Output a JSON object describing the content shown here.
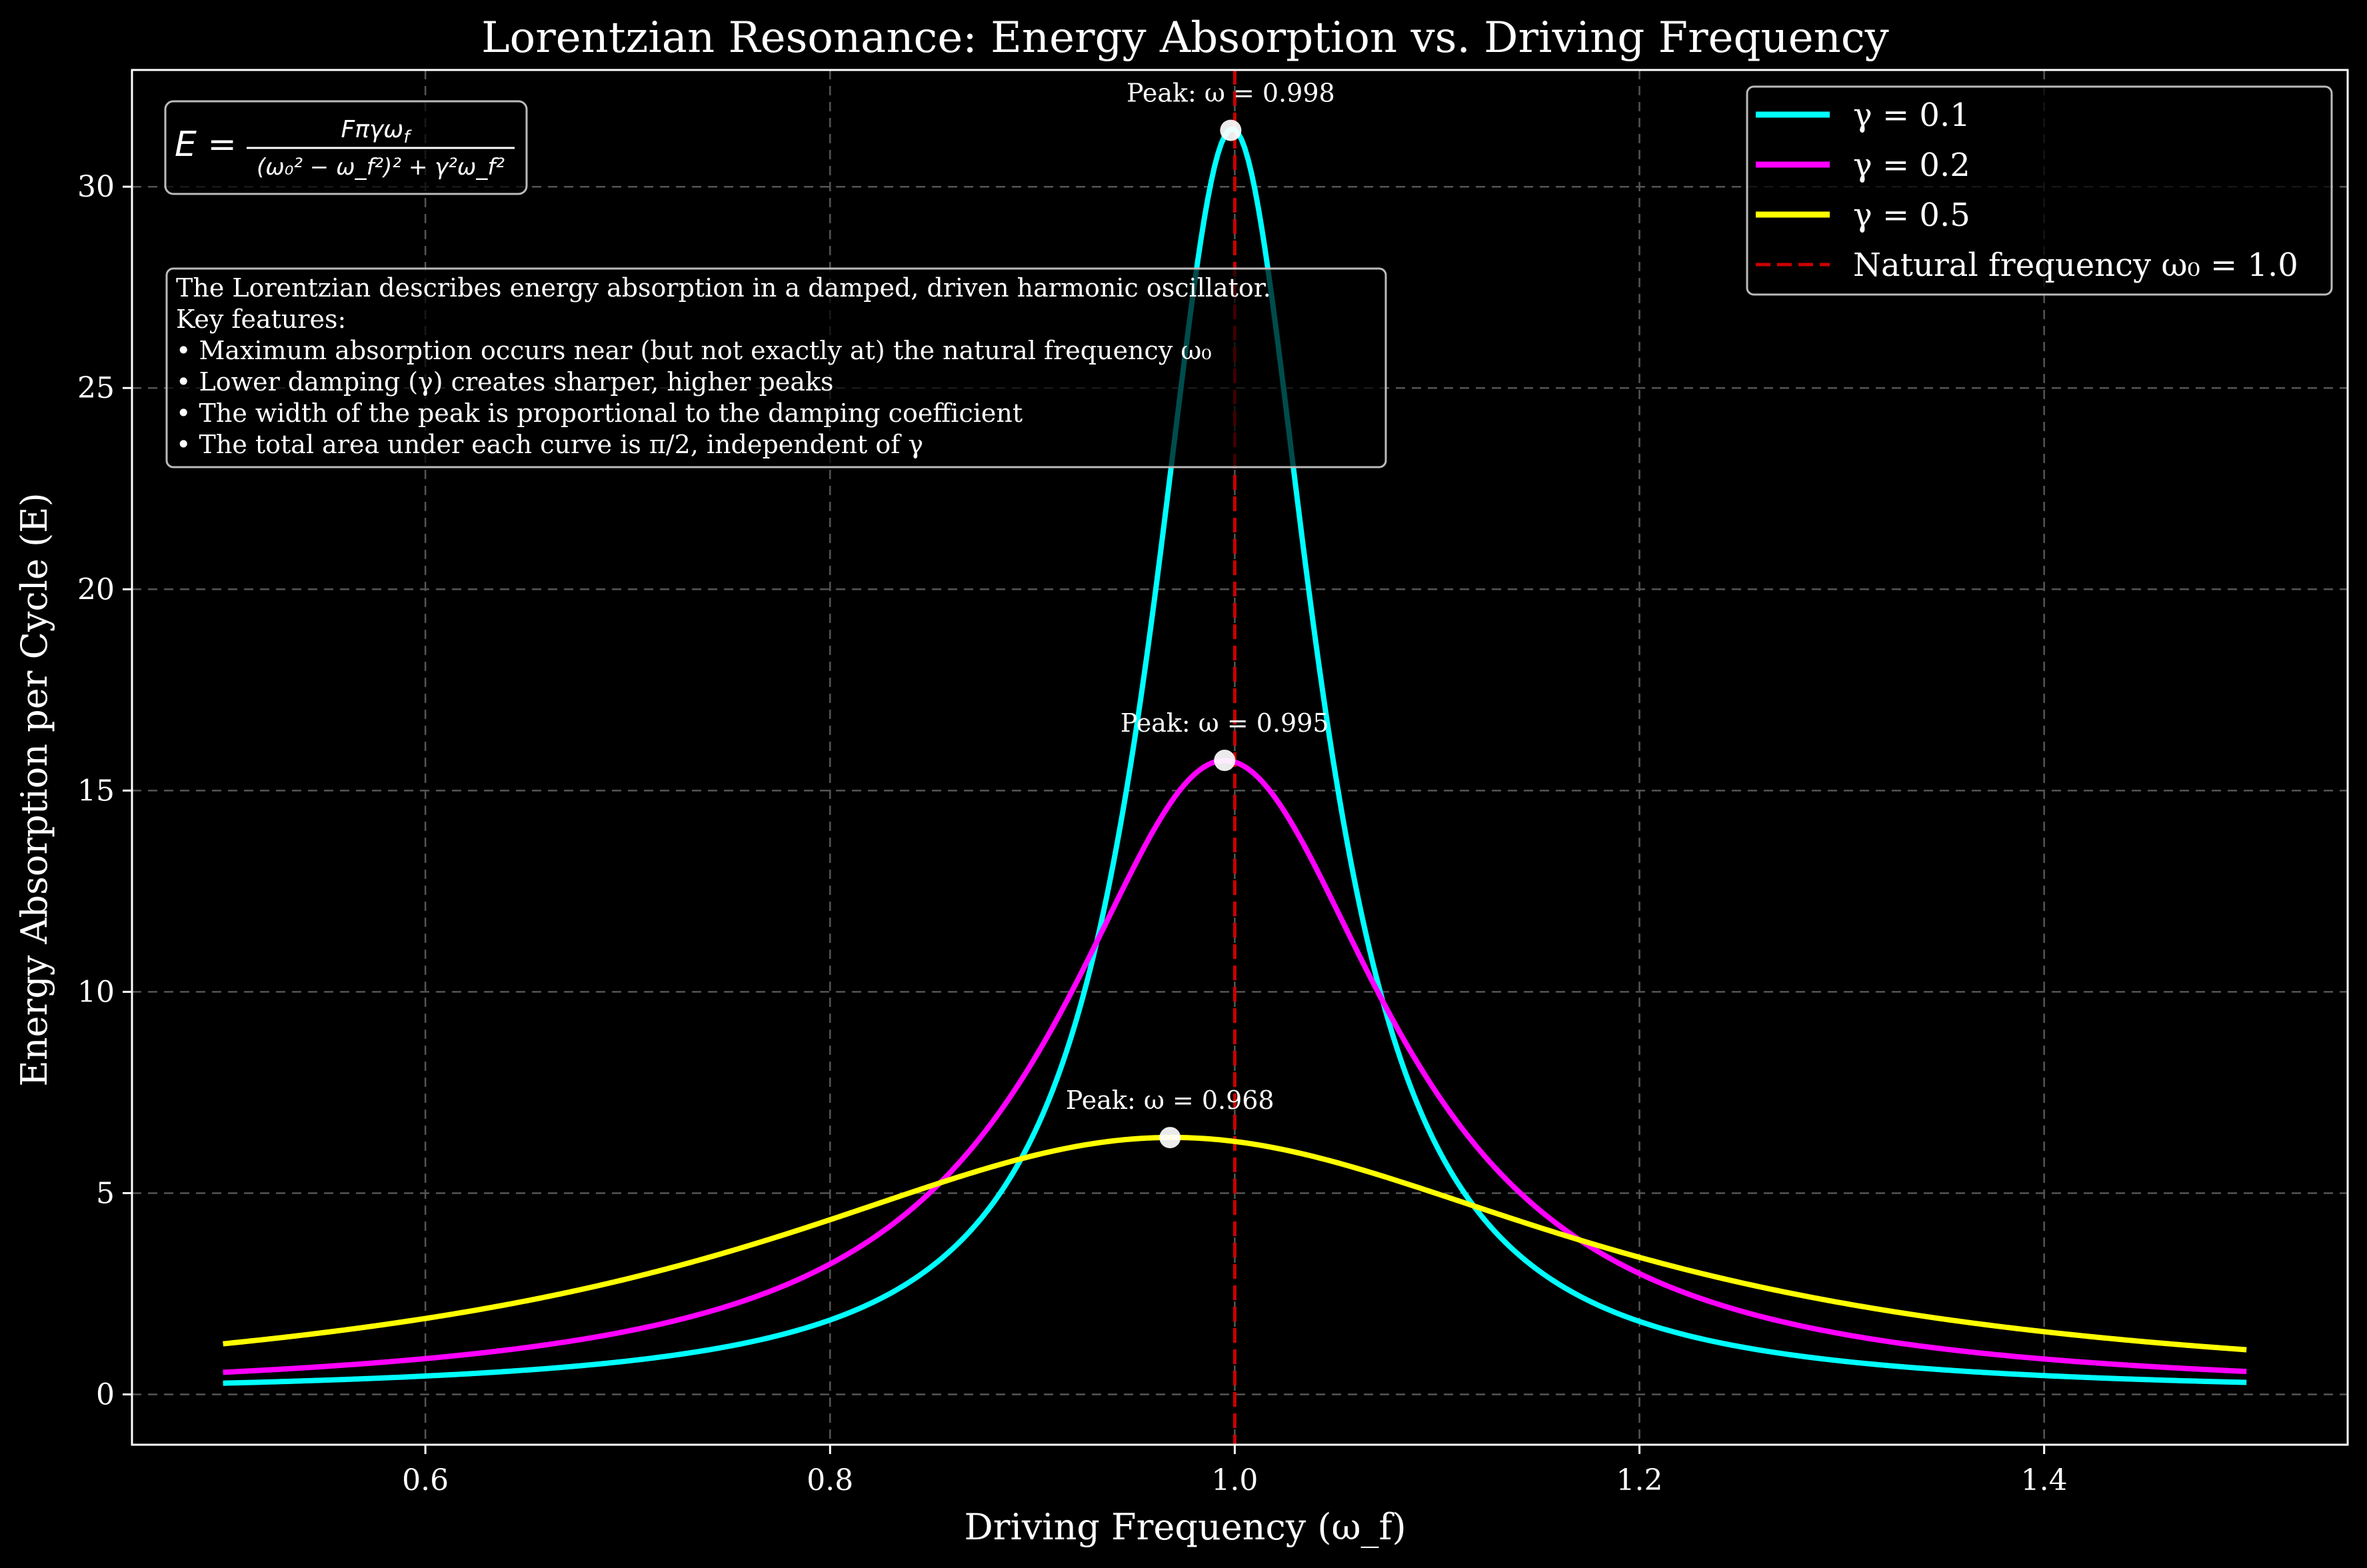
{
  "chart_data": {
    "type": "line",
    "title": "Lorentzian Resonance: Energy Absorption vs. Driving Frequency",
    "xlabel": "Driving Frequency (ω_f)",
    "ylabel": "Energy Absorption per Cycle (E)",
    "xlim": [
      0.455,
      1.55
    ],
    "ylim": [
      -1.25,
      32.9
    ],
    "xticks": [
      0.6,
      0.8,
      1.0,
      1.2,
      1.4
    ],
    "xtick_labels": [
      "0.6",
      "0.8",
      "1.0",
      "1.2",
      "1.4"
    ],
    "yticks": [
      0,
      5,
      10,
      15,
      20,
      25,
      30
    ],
    "ytick_labels": [
      "0",
      "5",
      "10",
      "15",
      "20",
      "25",
      "30"
    ],
    "grid": true,
    "legend_position": "top-right",
    "x_range": [
      0.5,
      1.5
    ],
    "natural_frequency": 1.0,
    "series": [
      {
        "name": "γ = 0.1",
        "gamma": 0.1,
        "color": "#00ffff"
      },
      {
        "name": "γ = 0.2",
        "gamma": 0.2,
        "color": "#ff00ff"
      },
      {
        "name": "γ = 0.5",
        "gamma": 0.5,
        "color": "#ffff00"
      }
    ],
    "reference_line": {
      "name": "Natural frequency ω₀ = 1.0",
      "x": 1.0,
      "color": "#cc0000",
      "style": "dashed"
    },
    "peaks": [
      {
        "x": 0.998,
        "y": 31.4,
        "label": "Peak: ω = 0.998"
      },
      {
        "x": 0.995,
        "y": 15.75,
        "label": "Peak: ω = 0.995"
      },
      {
        "x": 0.968,
        "y": 6.38,
        "label": "Peak: ω = 0.968"
      }
    ],
    "formula": {
      "lhs": "E =",
      "numerator": "Fπγω",
      "numerator_sub": "f",
      "denominator": "(ω₀² − ω_f²)² + γ²ω_f²"
    },
    "info_box": [
      "The Lorentzian describes energy absorption in a damped, driven harmonic oscillator.",
      "Key features:",
      "• Maximum absorption occurs near (but not exactly at) the natural frequency ω₀",
      "• Lower damping (γ) creates sharper, higher peaks",
      "• The width of the peak is proportional to the damping coefficient",
      "• The total area under each curve is π/2, independent of γ"
    ]
  }
}
